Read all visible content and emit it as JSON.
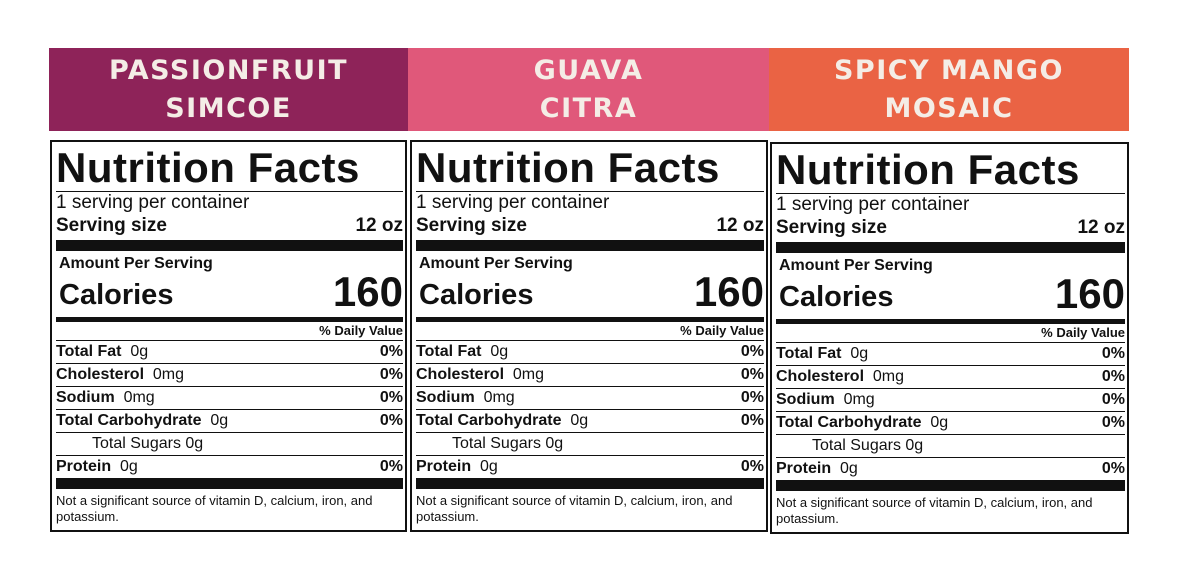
{
  "products": [
    {
      "banner": {
        "line1": "PASSIONFRUIT",
        "line2": "SIMCOE",
        "color": "#8e2359"
      },
      "label": {
        "title": "Nutrition Facts",
        "servings": "1 serving per container",
        "serving_size_label": "Serving size",
        "serving_size_value": "12 oz",
        "amount_per_serving": "Amount Per Serving",
        "calories_label": "Calories",
        "calories_value": "160",
        "daily_value_header": "% Daily Value",
        "nutrients": [
          {
            "name": "Total Fat",
            "amount": "0g",
            "dv": "0%"
          },
          {
            "name": "Cholesterol",
            "amount": "0mg",
            "dv": "0%"
          },
          {
            "name": "Sodium",
            "amount": "0mg",
            "dv": "0%"
          },
          {
            "name": "Total Carbohydrate",
            "amount": "0g",
            "dv": "0%"
          },
          {
            "name": "Total Sugars 0g",
            "amount": "",
            "dv": ""
          },
          {
            "name": "Protein",
            "amount": "0g",
            "dv": "0%"
          }
        ],
        "footnote": "Not a significant source of vitamin D, calcium, iron, and potassium."
      }
    },
    {
      "banner": {
        "line1": "GUAVA",
        "line2": "CITRA",
        "color": "#e0587a"
      },
      "label": {
        "title": "Nutrition Facts",
        "servings": "1 serving per container",
        "serving_size_label": "Serving size",
        "serving_size_value": "12 oz",
        "amount_per_serving": "Amount Per Serving",
        "calories_label": "Calories",
        "calories_value": "160",
        "daily_value_header": "% Daily Value",
        "nutrients": [
          {
            "name": "Total Fat",
            "amount": "0g",
            "dv": "0%"
          },
          {
            "name": "Cholesterol",
            "amount": "0mg",
            "dv": "0%"
          },
          {
            "name": "Sodium",
            "amount": "0mg",
            "dv": "0%"
          },
          {
            "name": "Total Carbohydrate",
            "amount": "0g",
            "dv": "0%"
          },
          {
            "name": "Total Sugars 0g",
            "amount": "",
            "dv": ""
          },
          {
            "name": "Protein",
            "amount": "0g",
            "dv": "0%"
          }
        ],
        "footnote": "Not a significant source of vitamin D, calcium, iron, and potassium."
      }
    },
    {
      "banner": {
        "line1": "SPICY MANGO",
        "line2": "MOSAIC",
        "color": "#ea6344"
      },
      "label": {
        "title": "Nutrition Facts",
        "servings": "1 serving per container",
        "serving_size_label": "Serving size",
        "serving_size_value": "12 oz",
        "amount_per_serving": "Amount Per Serving",
        "calories_label": "Calories",
        "calories_value": "160",
        "daily_value_header": "% Daily Value",
        "nutrients": [
          {
            "name": "Total Fat",
            "amount": "0g",
            "dv": "0%"
          },
          {
            "name": "Cholesterol",
            "amount": "0mg",
            "dv": "0%"
          },
          {
            "name": "Sodium",
            "amount": "0mg",
            "dv": "0%"
          },
          {
            "name": "Total Carbohydrate",
            "amount": "0g",
            "dv": "0%"
          },
          {
            "name": "Total Sugars 0g",
            "amount": "",
            "dv": ""
          },
          {
            "name": "Protein",
            "amount": "0g",
            "dv": "0%"
          }
        ],
        "footnote": "Not a significant source of vitamin D, calcium, iron, and potassium."
      }
    }
  ]
}
